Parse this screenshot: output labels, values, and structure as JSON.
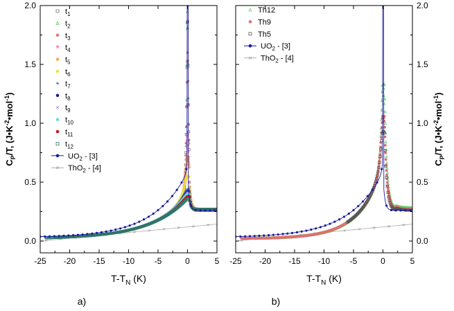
{
  "chart_data": [
    {
      "type": "scatter",
      "panel_label": "a)",
      "xlabel_main": "T-T",
      "xlabel_sub": "N",
      "xlabel_unit": " (K)",
      "ylabel_parts": {
        "c": "C",
        "p": "P",
        "t": "/T, (J•K",
        "e1": "-2",
        "mol": "•mol",
        "e2": "-1",
        "end": ")"
      },
      "xlim": [
        -25,
        5
      ],
      "ylim": [
        -0.1,
        2.0
      ],
      "xticks": [
        "-25",
        "-20",
        "-15",
        "-10",
        "-5",
        "0",
        "5"
      ],
      "yticks": [
        "0.0",
        "0.5",
        "1.0",
        "1.5",
        "2.0"
      ],
      "series": [
        {
          "name": "t",
          "sub": "1",
          "color": "#777777",
          "marker": "square",
          "xmin": -0.9,
          "peak": 2.05,
          "tail": 0.26,
          "width": 0.14
        },
        {
          "name": "t",
          "sub": "2",
          "color": "#55cc55",
          "marker": "triangle",
          "xmin": -1.2,
          "peak": 1.95,
          "tail": 0.27,
          "width": 0.16
        },
        {
          "name": "t",
          "sub": "3",
          "color": "#d08080",
          "marker": "circle",
          "xmin": -1.4,
          "peak": 1.6,
          "tail": 0.27,
          "width": 0.2
        },
        {
          "name": "t",
          "sub": "4",
          "color": "#ff88aa",
          "marker": "triangle-down",
          "xmin": -2.2,
          "peak": 0.9,
          "tail": 0.27,
          "width": 0.32
        },
        {
          "name": "t",
          "sub": "5",
          "color": "#ffa64d",
          "marker": "circle",
          "xmin": -2.5,
          "peak": 0.72,
          "tail": 0.27,
          "width": 0.45
        },
        {
          "name": "t",
          "sub": "6",
          "color": "#e8e040",
          "marker": "circle",
          "xmin": -5,
          "peak": 0.55,
          "tail": 0.27,
          "width": 0.8
        },
        {
          "name": "t",
          "sub": "7",
          "color": "#3366bb",
          "marker": "star",
          "xmin": -14,
          "peak": 0.44,
          "tail": 0.27,
          "width": 1.2
        },
        {
          "name": "t",
          "sub": "8",
          "color": "#1a1a99",
          "marker": "circle",
          "xmin": -20,
          "peak": 0.42,
          "tail": 0.27,
          "width": 1.5
        },
        {
          "name": "t",
          "sub": "9",
          "color": "#aa88cc",
          "marker": "x",
          "xmin": -7,
          "peak": 0.41,
          "tail": 0.27,
          "width": 1.6
        },
        {
          "name": "t",
          "sub": "10",
          "color": "#66dddd",
          "marker": "circle",
          "xmin": -22,
          "peak": 0.4,
          "tail": 0.27,
          "width": 1.8
        },
        {
          "name": "t",
          "sub": "11",
          "color": "#cc1111",
          "marker": "circle",
          "xmin": -22.5,
          "peak": 0.38,
          "tail": 0.27,
          "width": 1.9
        },
        {
          "name": "t",
          "sub": "12",
          "color": "#2a7a6a",
          "marker": "square",
          "xmin": -24,
          "peak": 0.36,
          "tail": 0.27,
          "width": 2.0
        }
      ],
      "ref_series": [
        {
          "name": "UO",
          "sub": "2",
          "suffix": " - [3]",
          "color": "#1a1aa0",
          "marker": "circle",
          "style": "line"
        },
        {
          "name": "ThO",
          "sub": "2",
          "suffix": " - [4]",
          "color": "#aaaaaa",
          "marker": "x",
          "style": "line"
        }
      ]
    },
    {
      "type": "scatter",
      "panel_label": "b)",
      "xlabel_main": "T-T",
      "xlabel_sub": "N",
      "xlabel_unit": " (K)",
      "ylabel_parts": {
        "c": "C",
        "p": "P",
        "t": "/T, (J•K",
        "e1": "-2",
        "mol": "•mol",
        "e2": "-1",
        "end": ")"
      },
      "xlim": [
        -25,
        5
      ],
      "ylim": [
        -0.1,
        2.0
      ],
      "xticks": [
        "-25",
        "-20",
        "-15",
        "-10",
        "-5",
        "0",
        "5"
      ],
      "yticks": [
        "0.0",
        "0.5",
        "1.0",
        "1.5",
        "2.0"
      ],
      "series": [
        {
          "name": "Th12",
          "sub": "",
          "color": "#66cc66",
          "marker": "triangle",
          "xmin": -22,
          "peak": 1.33,
          "tail": 0.28,
          "width": 0.32
        },
        {
          "name": "Th9",
          "sub": "",
          "color": "#e07070",
          "marker": "circle",
          "xmin": -24,
          "peak": 1.06,
          "tail": 0.27,
          "width": 0.42
        },
        {
          "name": "Th5",
          "sub": "",
          "color": "#555555",
          "marker": "square",
          "xmin": -6,
          "peak": 0.93,
          "tail": 0.26,
          "width": 0.5
        }
      ],
      "ref_series": [
        {
          "name": "UO",
          "sub": "2",
          "suffix": " - [3]",
          "color": "#1a1aa0",
          "marker": "circle",
          "style": "line"
        },
        {
          "name": "ThO",
          "sub": "2",
          "suffix": " - [4]",
          "color": "#aaaaaa",
          "marker": "x",
          "style": "line"
        }
      ]
    }
  ]
}
